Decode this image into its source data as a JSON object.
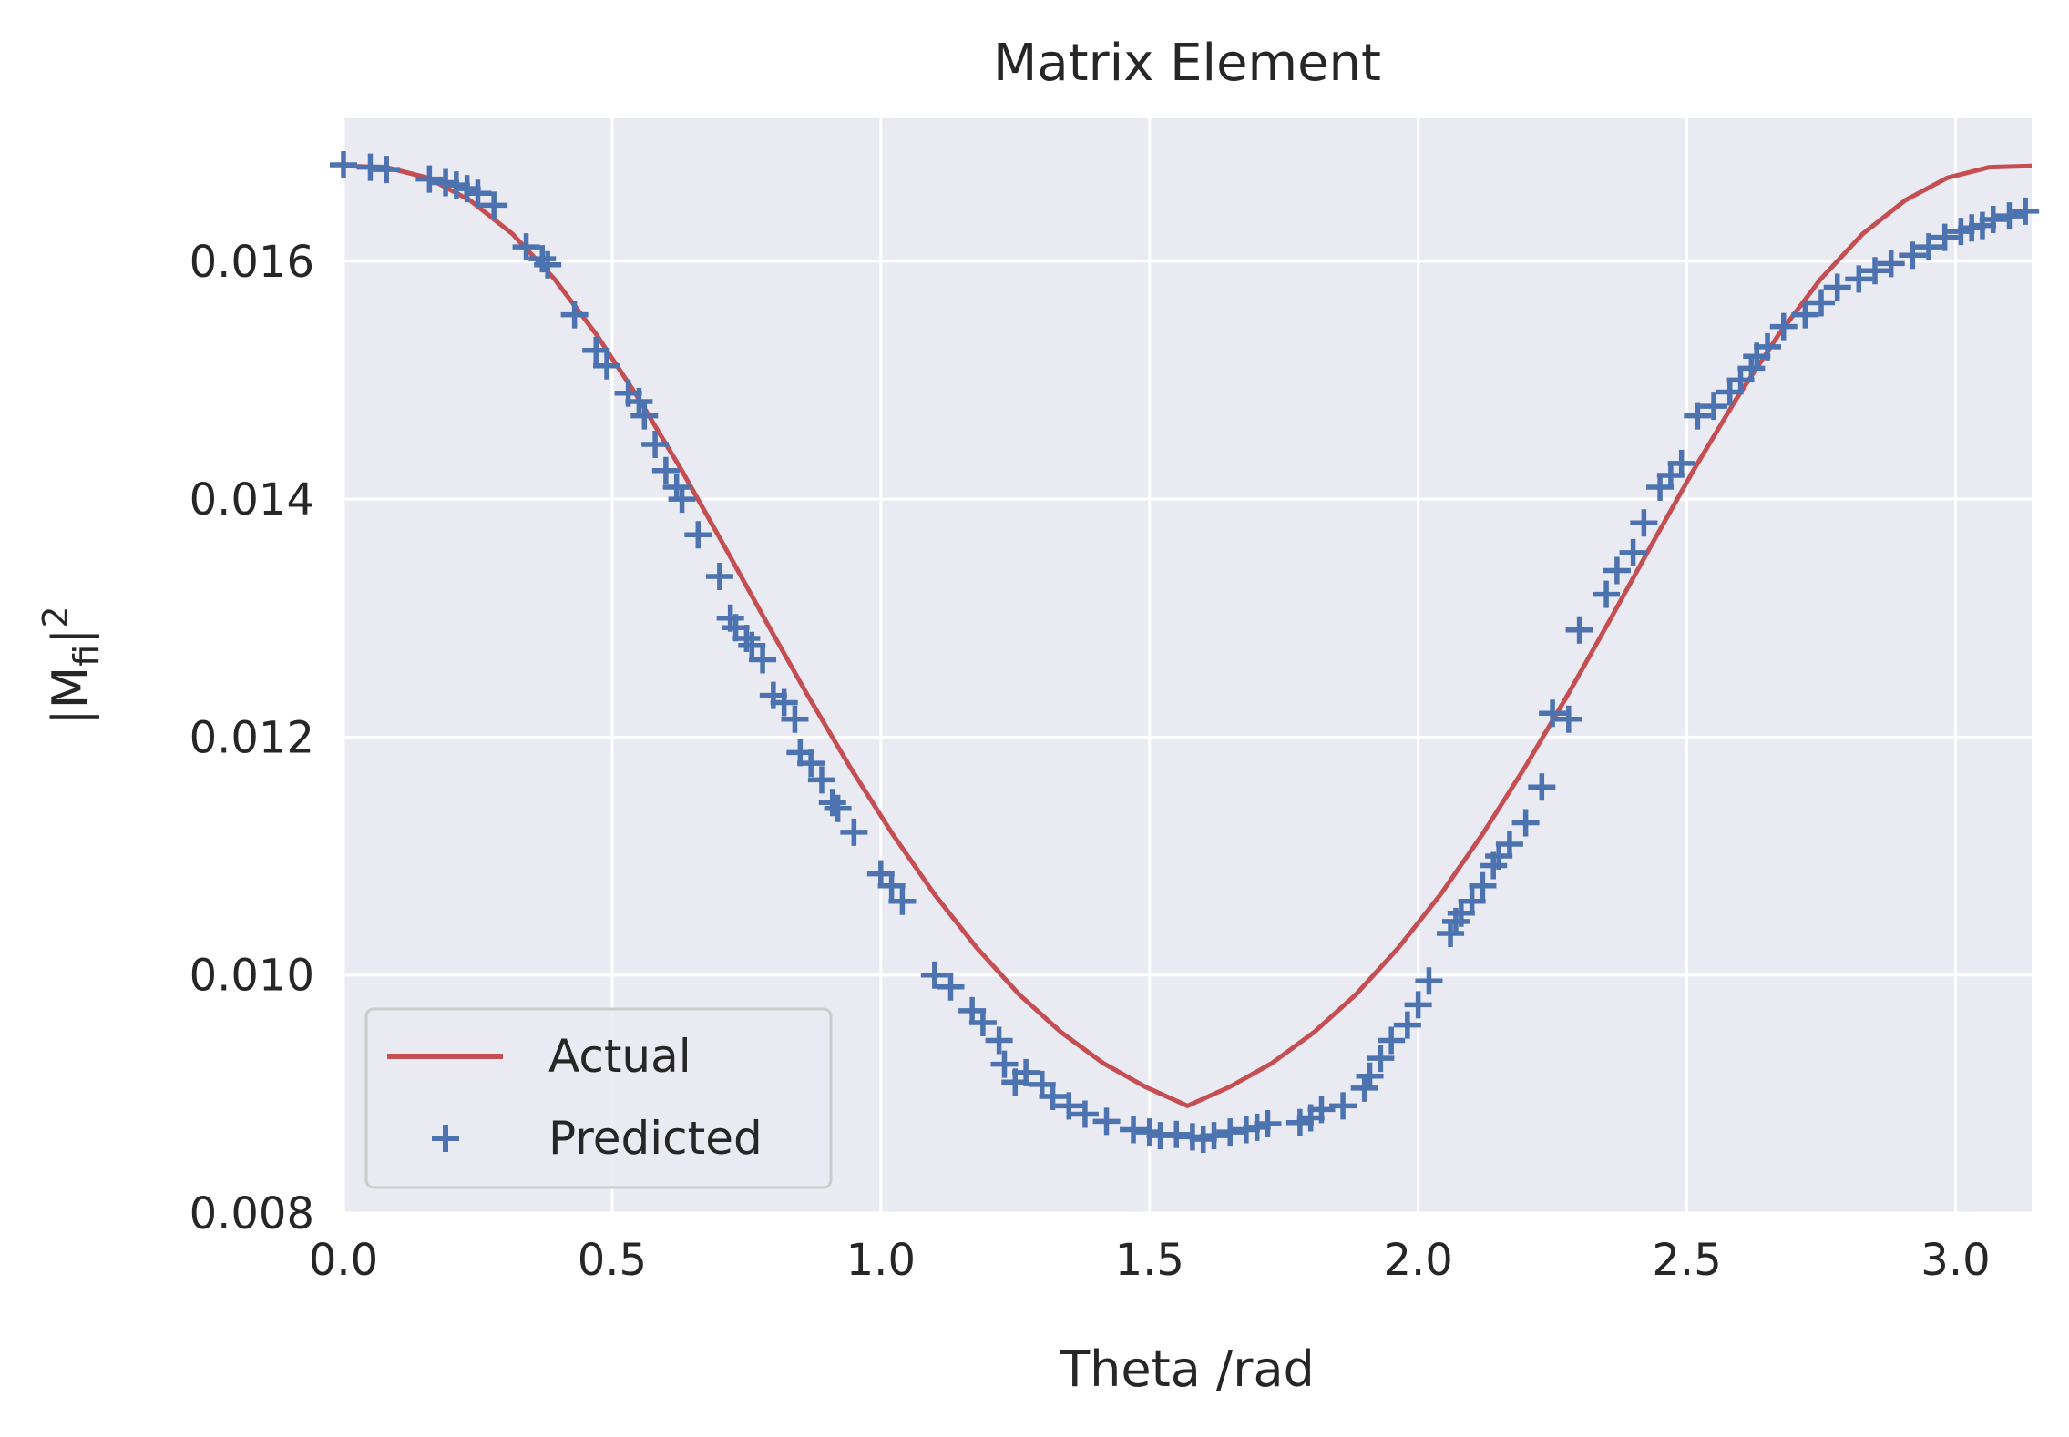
{
  "chart_data": {
    "type": "line",
    "title": "Matrix Element",
    "xlabel": "Theta /rad",
    "ylabel": {
      "base": "|M",
      "sub": "fi",
      "close": "|",
      "sup": "2"
    },
    "xlim": [
      0,
      3.1416
    ],
    "ylim": [
      0.008,
      0.0172
    ],
    "xticks": [
      0.0,
      0.5,
      1.0,
      1.5,
      2.0,
      2.5,
      3.0
    ],
    "xtick_labels": [
      "0.0",
      "0.5",
      "1.0",
      "1.5",
      "2.0",
      "2.5",
      "3.0"
    ],
    "yticks": [
      0.008,
      0.01,
      0.012,
      0.014,
      0.016
    ],
    "ytick_labels": [
      "0.008",
      "0.010",
      "0.012",
      "0.014",
      "0.016"
    ],
    "grid": true,
    "legend_position": "lower-left",
    "colors": {
      "background": "#eaeaf2",
      "grid": "#ffffff",
      "actual": "#c44e52",
      "predicted": "#4c72b0",
      "text": "#262626"
    },
    "series": [
      {
        "name": "Actual",
        "kind": "line",
        "x": [
          0,
          0.0785,
          0.1571,
          0.2356,
          0.3142,
          0.3927,
          0.4712,
          0.5498,
          0.6283,
          0.7069,
          0.7854,
          0.8639,
          0.9425,
          1.021,
          1.0996,
          1.1781,
          1.2566,
          1.3352,
          1.4137,
          1.4923,
          1.5708,
          1.6493,
          1.7279,
          1.8064,
          1.885,
          1.9635,
          2.042,
          2.1206,
          2.1991,
          2.2777,
          2.3562,
          2.4347,
          2.5133,
          2.5918,
          2.6704,
          2.7489,
          2.8274,
          2.906,
          2.9845,
          3.0631,
          3.1416
        ],
        "y": [
          0.0168,
          0.01679,
          0.0167,
          0.01651,
          0.01623,
          0.01585,
          0.01538,
          0.01484,
          0.01425,
          0.01362,
          0.01298,
          0.01235,
          0.01175,
          0.01119,
          0.01068,
          0.01023,
          0.00984,
          0.00952,
          0.00926,
          0.00906,
          0.0089,
          0.00906,
          0.00926,
          0.00952,
          0.00984,
          0.01023,
          0.01068,
          0.01119,
          0.01175,
          0.01235,
          0.01298,
          0.01362,
          0.01425,
          0.01484,
          0.01538,
          0.01585,
          0.01623,
          0.01651,
          0.0167,
          0.01679,
          0.0168
        ]
      },
      {
        "name": "Predicted",
        "kind": "scatter",
        "marker": "+",
        "x": [
          0.0,
          0.05,
          0.08,
          0.16,
          0.19,
          0.21,
          0.23,
          0.25,
          0.28,
          0.34,
          0.37,
          0.38,
          0.43,
          0.47,
          0.49,
          0.53,
          0.55,
          0.56,
          0.58,
          0.6,
          0.62,
          0.63,
          0.66,
          0.7,
          0.72,
          0.73,
          0.75,
          0.76,
          0.78,
          0.8,
          0.82,
          0.84,
          0.85,
          0.87,
          0.89,
          0.91,
          0.92,
          0.95,
          1.0,
          1.02,
          1.04,
          1.1,
          1.13,
          1.17,
          1.19,
          1.22,
          1.23,
          1.25,
          1.27,
          1.3,
          1.32,
          1.35,
          1.38,
          1.42,
          1.47,
          1.5,
          1.52,
          1.55,
          1.58,
          1.6,
          1.62,
          1.65,
          1.68,
          1.7,
          1.72,
          1.78,
          1.8,
          1.82,
          1.86,
          1.9,
          1.91,
          1.93,
          1.95,
          1.98,
          2.0,
          2.02,
          2.06,
          2.07,
          2.08,
          2.1,
          2.12,
          2.14,
          2.15,
          2.17,
          2.2,
          2.23,
          2.25,
          2.28,
          2.3,
          2.35,
          2.37,
          2.4,
          2.42,
          2.45,
          2.47,
          2.49,
          2.52,
          2.55,
          2.58,
          2.6,
          2.62,
          2.63,
          2.65,
          2.68,
          2.72,
          2.75,
          2.78,
          2.82,
          2.85,
          2.88,
          2.92,
          2.95,
          2.98,
          3.01,
          3.03,
          3.05,
          3.07,
          3.1,
          3.13
        ],
        "y": [
          0.01681,
          0.01679,
          0.01677,
          0.01669,
          0.01666,
          0.01664,
          0.01661,
          0.01657,
          0.01647,
          0.01612,
          0.01602,
          0.01597,
          0.01555,
          0.01525,
          0.01512,
          0.01489,
          0.01482,
          0.0147,
          0.01446,
          0.01424,
          0.0141,
          0.014,
          0.0137,
          0.01335,
          0.013,
          0.01292,
          0.01283,
          0.01277,
          0.01265,
          0.01235,
          0.01229,
          0.01215,
          0.01187,
          0.01178,
          0.01164,
          0.01145,
          0.0114,
          0.0112,
          0.01085,
          0.01075,
          0.01062,
          0.01,
          0.0099,
          0.0097,
          0.0096,
          0.00945,
          0.00925,
          0.0091,
          0.00918,
          0.00908,
          0.00898,
          0.0089,
          0.00883,
          0.00877,
          0.0087,
          0.00868,
          0.00865,
          0.00866,
          0.00864,
          0.00862,
          0.00865,
          0.00868,
          0.0087,
          0.00872,
          0.00875,
          0.00876,
          0.0088,
          0.00887,
          0.0089,
          0.00905,
          0.00915,
          0.0093,
          0.00945,
          0.00958,
          0.00975,
          0.00995,
          0.01035,
          0.01045,
          0.01052,
          0.01062,
          0.01075,
          0.01092,
          0.011,
          0.0111,
          0.01128,
          0.01158,
          0.0122,
          0.01215,
          0.0129,
          0.0132,
          0.0134,
          0.01355,
          0.0138,
          0.0141,
          0.0142,
          0.0143,
          0.0147,
          0.01478,
          0.0149,
          0.015,
          0.0151,
          0.0152,
          0.01528,
          0.01545,
          0.01555,
          0.01565,
          0.01578,
          0.01585,
          0.01592,
          0.01598,
          0.01605,
          0.01612,
          0.0162,
          0.01625,
          0.01628,
          0.0163,
          0.01635,
          0.01638,
          0.01642
        ]
      }
    ]
  }
}
